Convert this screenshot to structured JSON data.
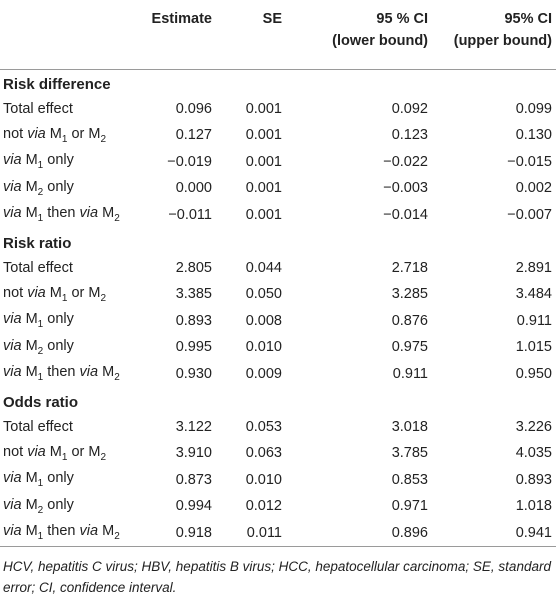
{
  "table": {
    "columns": [
      "",
      "Estimate",
      "SE",
      "95 % CI\n(lower bound)",
      "95% CI\n(upper bound)"
    ],
    "sections": [
      {
        "title": "Risk difference",
        "rows": [
          {
            "label": "Total effect",
            "values": [
              "0.096",
              "0.001",
              "0.092",
              "0.099"
            ]
          },
          {
            "label": "not via M1 or M2",
            "values": [
              "0.127",
              "0.001",
              "0.123",
              "0.130"
            ]
          },
          {
            "label": "via M1 only",
            "values": [
              "−0.019",
              "0.001",
              "−0.022",
              "−0.015"
            ]
          },
          {
            "label": "via M2 only",
            "values": [
              "0.000",
              "0.001",
              "−0.003",
              "0.002"
            ]
          },
          {
            "label": "via M1 then via M2",
            "values": [
              "−0.011",
              "0.001",
              "−0.014",
              "−0.007"
            ]
          }
        ]
      },
      {
        "title": "Risk ratio",
        "rows": [
          {
            "label": "Total effect",
            "values": [
              "2.805",
              "0.044",
              "2.718",
              "2.891"
            ]
          },
          {
            "label": "not via M1 or M2",
            "values": [
              "3.385",
              "0.050",
              "3.285",
              "3.484"
            ]
          },
          {
            "label": "via M1 only",
            "values": [
              "0.893",
              "0.008",
              "0.876",
              "0.911"
            ]
          },
          {
            "label": "via M2 only",
            "values": [
              "0.995",
              "0.010",
              "0.975",
              "1.015"
            ]
          },
          {
            "label": "via M1 then via M2",
            "values": [
              "0.930",
              "0.009",
              "0.911",
              "0.950"
            ]
          }
        ]
      },
      {
        "title": "Odds ratio",
        "rows": [
          {
            "label": "Total effect",
            "values": [
              "3.122",
              "0.053",
              "3.018",
              "3.226"
            ]
          },
          {
            "label": "not via M1 or M2",
            "values": [
              "3.910",
              "0.063",
              "3.785",
              "4.035"
            ]
          },
          {
            "label": "via M1 only",
            "values": [
              "0.873",
              "0.010",
              "0.853",
              "0.893"
            ]
          },
          {
            "label": "via M2 only",
            "values": [
              "0.994",
              "0.012",
              "0.971",
              "1.018"
            ]
          },
          {
            "label": "via M1 then via M2",
            "values": [
              "0.918",
              "0.011",
              "0.896",
              "0.941"
            ]
          }
        ]
      }
    ]
  },
  "footnote": "HCV, hepatitis C virus; HBV, hepatitis B virus; HCC, hepatocellular carcinoma; SE, standard error; CI, confidence interval."
}
